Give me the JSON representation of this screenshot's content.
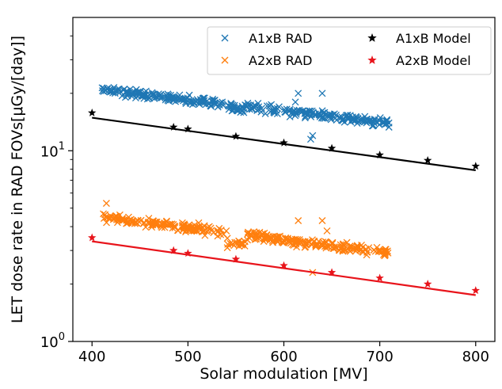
{
  "chart_data": {
    "type": "scatter",
    "xlabel": "Solar modulation [MV]",
    "ylabel": "LET dose rate in RAD FOVs[μGy/[day]]",
    "xlim": [
      380,
      820
    ],
    "ylim": [
      1,
      50
    ],
    "yscale": "log",
    "xticks": [
      400,
      500,
      600,
      700,
      800
    ],
    "yticks": [
      {
        "value": 1,
        "base": "10",
        "exp": "0"
      },
      {
        "value": 10,
        "base": "10",
        "exp": "1"
      }
    ],
    "legend_position": "top-right",
    "series": [
      {
        "name": "A1xB RAD",
        "kind": "scatter-x",
        "color": "#1f77b4",
        "range": [
          410,
          710
        ],
        "start": 21,
        "end": 14,
        "spread": 0.05,
        "outliers": [
          [
            615,
            20
          ],
          [
            640,
            20
          ],
          [
            612,
            18
          ],
          [
            630,
            12
          ],
          [
            628,
            11.5
          ],
          [
            545,
            17
          ],
          [
            505,
            17.5
          ]
        ]
      },
      {
        "name": "A2xB RAD",
        "kind": "scatter-x",
        "color": "#ff7f0e",
        "range": [
          410,
          710
        ],
        "start": 4.5,
        "end": 2.9,
        "spread": 0.05,
        "outliers": [
          [
            640,
            4.3
          ],
          [
            615,
            4.3
          ],
          [
            415,
            5.3
          ],
          [
            630,
            2.3
          ],
          [
            645,
            3.8
          ],
          [
            540,
            3.8
          ]
        ]
      },
      {
        "name": "A1xB Model",
        "kind": "star-line",
        "color": "#000000",
        "x": [
          400,
          485,
          500,
          550,
          600,
          650,
          700,
          750,
          800
        ],
        "y": [
          15.8,
          13.3,
          13.0,
          11.9,
          11.0,
          10.3,
          9.5,
          8.9,
          8.3
        ],
        "fit": [
          [
            400,
            14.9
          ],
          [
            800,
            7.9
          ]
        ]
      },
      {
        "name": "A2xB Model",
        "kind": "star-line",
        "color": "#e8141b",
        "x": [
          400,
          485,
          500,
          550,
          600,
          650,
          700,
          750,
          800
        ],
        "y": [
          3.5,
          3.0,
          2.9,
          2.7,
          2.5,
          2.3,
          2.15,
          2.0,
          1.85
        ],
        "fit": [
          [
            400,
            3.35
          ],
          [
            800,
            1.75
          ]
        ]
      }
    ]
  }
}
